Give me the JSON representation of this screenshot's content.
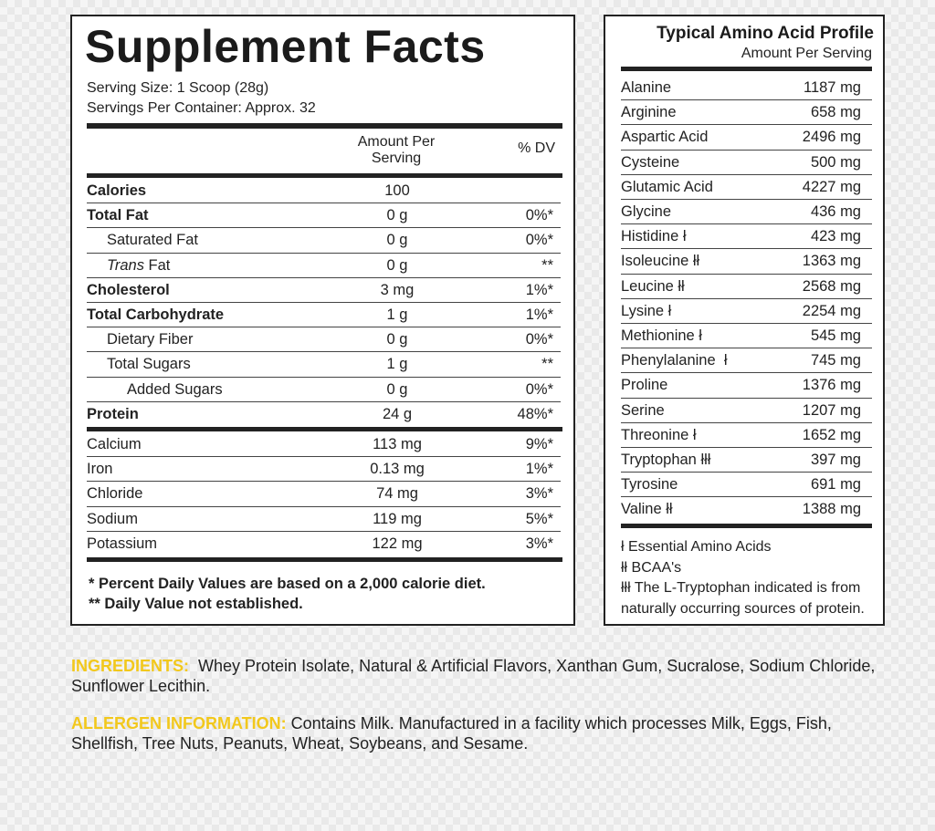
{
  "supplement_facts": {
    "title": "Supplement Facts",
    "serving_size": "Serving Size: 1 Scoop (28g)",
    "servings_per_container": "Servings Per Container: Approx. 32",
    "col_amount_1": "Amount Per",
    "col_amount_2": "Serving",
    "col_dv": "% DV",
    "rows": [
      {
        "label": "Calories",
        "amount": "100",
        "dv": "",
        "bold": true,
        "indent": 0
      },
      {
        "label": "Total Fat",
        "amount": "0 g",
        "dv": "0%*",
        "bold": true,
        "indent": 0
      },
      {
        "label": "Saturated Fat",
        "amount": "0 g",
        "dv": "0%*",
        "bold": false,
        "indent": 1
      },
      {
        "label": "Trans",
        "label_suffix": " Fat",
        "amount": "0 g",
        "dv": "**",
        "bold": false,
        "indent": 1,
        "italic": true
      },
      {
        "label": "Cholesterol",
        "amount": "3 mg",
        "dv": "1%*",
        "bold": true,
        "indent": 0
      },
      {
        "label": "Total Carbohydrate",
        "amount": "1 g",
        "dv": "1%*",
        "bold": true,
        "indent": 0
      },
      {
        "label": "Dietary Fiber",
        "amount": "0 g",
        "dv": "0%*",
        "bold": false,
        "indent": 1
      },
      {
        "label": "Total Sugars",
        "amount": "1 g",
        "dv": "**",
        "bold": false,
        "indent": 1
      },
      {
        "label": "Added Sugars",
        "amount": "0 g",
        "dv": "0%*",
        "bold": false,
        "indent": 2
      },
      {
        "label": "Protein",
        "amount": "24 g",
        "dv": "48%*",
        "bold": true,
        "indent": 0
      }
    ],
    "minerals": [
      {
        "label": "Calcium",
        "amount": "113 mg",
        "dv": "9%*"
      },
      {
        "label": "Iron",
        "amount": "0.13 mg",
        "dv": "1%*"
      },
      {
        "label": "Chloride",
        "amount": "74 mg",
        "dv": "3%*"
      },
      {
        "label": "Sodium",
        "amount": "119 mg",
        "dv": "5%*"
      },
      {
        "label": "Potassium",
        "amount": "122 mg",
        "dv": "3%*"
      }
    ],
    "footnote_1": "* Percent Daily Values are based on a 2,000 calorie diet.",
    "footnote_2": "** Daily Value not established."
  },
  "amino_profile": {
    "title": "Typical Amino Acid Profile",
    "subtitle": "Amount Per Serving",
    "rows": [
      {
        "label": "Alanine",
        "value": "1187 mg"
      },
      {
        "label": "Arginine",
        "value": "658 mg"
      },
      {
        "label": "Aspartic Acid",
        "value": "2496 mg"
      },
      {
        "label": "Cysteine",
        "value": "500 mg"
      },
      {
        "label": "Glutamic Acid",
        "value": "4227 mg"
      },
      {
        "label": "Glycine",
        "value": "436 mg"
      },
      {
        "label": "Histidine ł",
        "value": "423 mg"
      },
      {
        "label": "Isoleucine łł",
        "value": "1363 mg"
      },
      {
        "label": "Leucine łł",
        "value": "2568 mg"
      },
      {
        "label": "Lysine ł",
        "value": "2254 mg"
      },
      {
        "label": "Methionine ł",
        "value": "545 mg"
      },
      {
        "label": "Phenylalanine  ł",
        "value": "745 mg"
      },
      {
        "label": "Proline",
        "value": "1376 mg"
      },
      {
        "label": "Serine",
        "value": "1207 mg"
      },
      {
        "label": "Threonine ł",
        "value": "1652 mg"
      },
      {
        "label": "Tryptophan łłł",
        "value": "397 mg"
      },
      {
        "label": "Tyrosine",
        "value": "691 mg"
      },
      {
        "label": "Valine łł",
        "value": "1388 mg"
      }
    ],
    "legend": [
      "ł Essential Amino Acids",
      "łł BCAA's",
      "łłł The L-Tryptophan indicated is from",
      "naturally occurring sources of protein."
    ]
  },
  "ingredients": {
    "label": "INGREDIENTS:",
    "text": "  Whey Protein Isolate, Natural & Artificial Flavors, Xanthan Gum, Sucralose, Sodium Chloride, Sunflower Lecithin."
  },
  "allergen": {
    "label": "ALLERGEN INFORMATION:",
    "text": " Contains Milk. Manufactured in a facility which processes Milk, Eggs, Fish, Shellfish, Tree Nuts, Peanuts, Wheat, Soybeans, and Sesame."
  },
  "colors": {
    "highlight": "#f2c81c",
    "border": "#222222"
  }
}
